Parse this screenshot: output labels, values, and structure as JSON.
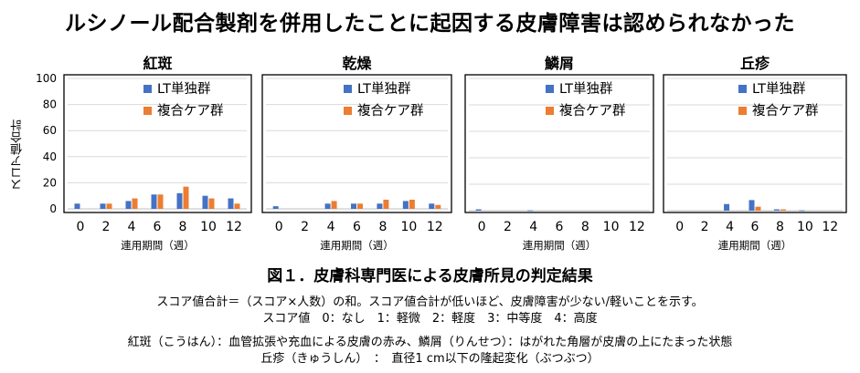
{
  "headline": "ルシノール配合製剤を併用したことに起因する皮膚障害は認められなかった",
  "y_axis_label": "スコア値合計",
  "colors": {
    "lt": "#4472C4",
    "combo": "#ED7D31",
    "frame": "#000000",
    "grid": "#D9D9D9"
  },
  "chart_data": [
    {
      "type": "bar",
      "title": "紅斑",
      "categories": [
        "0",
        "2",
        "4",
        "6",
        "8",
        "10",
        "12"
      ],
      "xlabel": "連用期間（週）",
      "ylim": [
        0,
        100
      ],
      "yticks": [
        0,
        20,
        40,
        60,
        80,
        100
      ],
      "grid": true,
      "legend_position": "top-right",
      "series": [
        {
          "name": "LT単独群",
          "values": [
            4,
            4,
            6,
            11,
            12,
            10,
            8
          ]
        },
        {
          "name": "複合ケア群",
          "values": [
            0,
            4,
            8,
            11,
            17,
            8,
            4
          ]
        }
      ]
    },
    {
      "type": "bar",
      "title": "乾燥",
      "categories": [
        "0",
        "2",
        "4",
        "6",
        "8",
        "10",
        "12"
      ],
      "xlabel": "連用期間（週）",
      "ylim": [
        0,
        100
      ],
      "yticks": [
        0,
        20,
        40,
        60,
        80,
        100
      ],
      "grid": true,
      "legend_position": "top-right",
      "series": [
        {
          "name": "LT単独群",
          "values": [
            2,
            0,
            4,
            4,
            4,
            6,
            4
          ]
        },
        {
          "name": "複合ケア群",
          "values": [
            0,
            0,
            6,
            4,
            7,
            7,
            3
          ]
        }
      ]
    },
    {
      "type": "bar",
      "title": "鱗屑",
      "categories": [
        "0",
        "2",
        "4",
        "6",
        "8",
        "10",
        "12"
      ],
      "xlabel": "連用期間（週）",
      "ylim": [
        0,
        100
      ],
      "yticks": [
        0,
        20,
        40,
        60,
        80,
        100
      ],
      "grid": true,
      "legend_position": "top-right",
      "series": [
        {
          "name": "LT単独群",
          "values": [
            1,
            0,
            0.3,
            0,
            0,
            0,
            0
          ]
        },
        {
          "name": "複合ケア群",
          "values": [
            0,
            0,
            0,
            0,
            0,
            0,
            0
          ]
        }
      ]
    },
    {
      "type": "bar",
      "title": "丘疹",
      "categories": [
        "0",
        "2",
        "4",
        "6",
        "8",
        "10",
        "12"
      ],
      "xlabel": "連用期間（週）",
      "ylim": [
        0,
        100
      ],
      "yticks": [
        0,
        20,
        40,
        60,
        80,
        100
      ],
      "grid": true,
      "legend_position": "top-right",
      "series": [
        {
          "name": "LT単独群",
          "values": [
            0,
            0,
            5,
            8,
            1,
            0.3,
            0
          ]
        },
        {
          "name": "複合ケア群",
          "values": [
            0,
            0,
            0,
            3,
            1,
            0,
            0
          ]
        }
      ]
    }
  ],
  "caption": "図１．皮膚科専門医による皮膚所見の判定結果",
  "notes": [
    "スコア値合計＝（スコア×人数）の和。スコア値合計が低いほど、皮膚障害が少ない/軽いことを示す。",
    "スコア値　0：なし　1：軽微　2：軽度　3：中等度　4：高度",
    "紅斑（こうはん）：血管拡張や充血による皮膚の赤み、鱗屑（りんせつ）：はがれた角層が皮膚の上にたまった状態",
    "丘疹（きゅうしん）　：　直径1 cm以下の隆起変化（ぶつぶつ）"
  ]
}
